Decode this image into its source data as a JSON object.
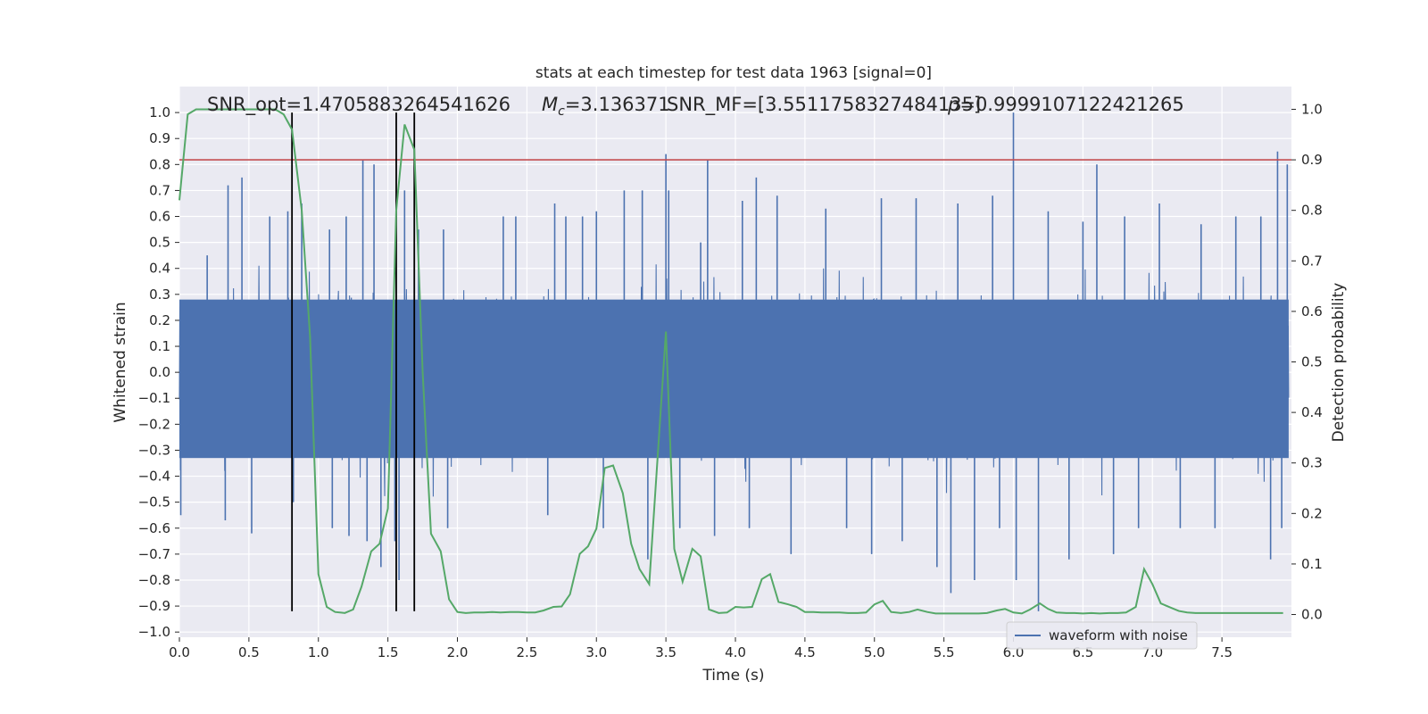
{
  "chart_data": {
    "type": "line",
    "title": "stats at each timestep for test data 1963 [signal=0]",
    "xlabel": "Time (s)",
    "ylabel_left": "Whitened strain",
    "ylabel_right": "Detection probability",
    "xlim": [
      0.0,
      8.0
    ],
    "ylim_left": [
      -1.02,
      1.1
    ],
    "ylim_right": [
      -0.045,
      1.045
    ],
    "x_ticks": [
      0.0,
      0.5,
      1.0,
      1.5,
      2.0,
      2.5,
      3.0,
      3.5,
      4.0,
      4.5,
      5.0,
      5.5,
      6.0,
      6.5,
      7.0,
      7.5
    ],
    "x_tick_labels": [
      "0.0",
      "0.5",
      "1.0",
      "1.5",
      "2.0",
      "2.5",
      "3.0",
      "3.5",
      "4.0",
      "4.5",
      "5.0",
      "5.5",
      "6.0",
      "6.5",
      "7.0",
      "7.5"
    ],
    "y_left_ticks": [
      -1.0,
      -0.9,
      -0.8,
      -0.7,
      -0.6,
      -0.5,
      -0.4,
      -0.3,
      -0.2,
      -0.1,
      0.0,
      0.1,
      0.2,
      0.3,
      0.4,
      0.5,
      0.6,
      0.7,
      0.8,
      0.9,
      1.0
    ],
    "y_left_tick_labels": [
      "−1.0",
      "−0.9",
      "−0.8",
      "−0.7",
      "−0.6",
      "−0.5",
      "−0.4",
      "−0.3",
      "−0.2",
      "−0.1",
      "0.0",
      "0.1",
      "0.2",
      "0.3",
      "0.4",
      "0.5",
      "0.6",
      "0.7",
      "0.8",
      "0.9",
      "1.0"
    ],
    "y_right_ticks": [
      0.0,
      0.1,
      0.2,
      0.3,
      0.4,
      0.5,
      0.6,
      0.7,
      0.8,
      0.9,
      1.0
    ],
    "y_right_tick_labels": [
      "0.0",
      "0.1",
      "0.2",
      "0.3",
      "0.4",
      "0.5",
      "0.6",
      "0.7",
      "0.8",
      "0.9",
      "1.0"
    ],
    "grid": true,
    "legend": {
      "placement": "lower-right",
      "entries": [
        "waveform with noise"
      ]
    },
    "annotations": [
      {
        "text": "SNR_opt=1.4705883264541626",
        "x": 0.2
      },
      {
        "text": "M",
        "sub": "c",
        "rest": "=3.136371",
        "x": 2.6
      },
      {
        "text": "SNR_MF=[3.5511758327484135]",
        "x": 3.52
      },
      {
        "text": "=0.9999107122421265",
        "prefix": "p",
        "x": 5.6
      }
    ],
    "threshold": {
      "axis": "right",
      "value": 0.9,
      "color": "#c44e52"
    },
    "vlines": [
      0.81,
      1.56,
      1.69
    ],
    "vline_range_left": [
      -0.92,
      1.0
    ],
    "waveform": {
      "name": "waveform with noise",
      "color": "#4c72b0",
      "axis": "left",
      "x_start": 0.0,
      "x_end": 7.98,
      "core_sigma": 0.14,
      "spikes": [
        [
          0.01,
          -0.55
        ],
        [
          0.2,
          0.45
        ],
        [
          0.33,
          -0.57
        ],
        [
          0.35,
          0.72
        ],
        [
          0.45,
          0.75
        ],
        [
          0.52,
          -0.62
        ],
        [
          0.65,
          0.6
        ],
        [
          0.78,
          0.62
        ],
        [
          0.82,
          -0.5
        ],
        [
          0.88,
          0.65
        ],
        [
          1.08,
          0.55
        ],
        [
          1.1,
          -0.6
        ],
        [
          1.2,
          0.6
        ],
        [
          1.22,
          -0.63
        ],
        [
          1.32,
          0.82
        ],
        [
          1.35,
          -0.65
        ],
        [
          1.4,
          0.8
        ],
        [
          1.45,
          -0.75
        ],
        [
          1.55,
          -0.65
        ],
        [
          1.58,
          -0.8
        ],
        [
          1.62,
          0.7
        ],
        [
          1.72,
          0.55
        ],
        [
          1.9,
          0.55
        ],
        [
          1.93,
          -0.6
        ],
        [
          2.33,
          0.6
        ],
        [
          2.42,
          0.6
        ],
        [
          2.65,
          -0.55
        ],
        [
          2.7,
          0.65
        ],
        [
          2.78,
          0.6
        ],
        [
          2.9,
          0.6
        ],
        [
          3.0,
          0.62
        ],
        [
          3.05,
          -0.6
        ],
        [
          3.2,
          0.7
        ],
        [
          3.33,
          0.7
        ],
        [
          3.37,
          -0.72
        ],
        [
          3.5,
          0.84
        ],
        [
          3.52,
          0.7
        ],
        [
          3.6,
          -0.6
        ],
        [
          3.75,
          0.5
        ],
        [
          3.8,
          0.82
        ],
        [
          3.85,
          -0.63
        ],
        [
          4.05,
          0.66
        ],
        [
          4.1,
          -0.6
        ],
        [
          4.15,
          0.75
        ],
        [
          4.3,
          0.68
        ],
        [
          4.4,
          -0.7
        ],
        [
          4.65,
          0.63
        ],
        [
          4.8,
          -0.6
        ],
        [
          4.98,
          -0.7
        ],
        [
          5.05,
          0.67
        ],
        [
          5.2,
          -0.65
        ],
        [
          5.3,
          0.67
        ],
        [
          5.45,
          -0.75
        ],
        [
          5.55,
          -0.85
        ],
        [
          5.6,
          0.65
        ],
        [
          5.72,
          -0.8
        ],
        [
          5.85,
          0.68
        ],
        [
          5.9,
          -0.6
        ],
        [
          6.0,
          1.0
        ],
        [
          6.02,
          -0.8
        ],
        [
          6.18,
          -0.92
        ],
        [
          6.25,
          0.62
        ],
        [
          6.4,
          -0.72
        ],
        [
          6.5,
          0.58
        ],
        [
          6.6,
          0.8
        ],
        [
          6.72,
          -0.7
        ],
        [
          6.8,
          0.6
        ],
        [
          6.9,
          -0.6
        ],
        [
          7.05,
          0.65
        ],
        [
          7.2,
          -0.6
        ],
        [
          7.35,
          0.57
        ],
        [
          7.45,
          -0.6
        ],
        [
          7.6,
          0.6
        ],
        [
          7.78,
          0.6
        ],
        [
          7.85,
          -0.72
        ],
        [
          7.9,
          0.85
        ],
        [
          7.93,
          -0.6
        ],
        [
          7.97,
          0.8
        ]
      ]
    },
    "probability": {
      "color": "#55a868",
      "axis": "right",
      "x": [
        0.0,
        0.06,
        0.12,
        0.19,
        0.25,
        0.31,
        0.38,
        0.44,
        0.5,
        0.56,
        0.62,
        0.69,
        0.75,
        0.81,
        0.88,
        0.94,
        1.0,
        1.06,
        1.12,
        1.19,
        1.25,
        1.31,
        1.38,
        1.44,
        1.5,
        1.56,
        1.62,
        1.69,
        1.75,
        1.81,
        1.88,
        1.94,
        2.0,
        2.06,
        2.12,
        2.19,
        2.25,
        2.31,
        2.38,
        2.44,
        2.5,
        2.56,
        2.62,
        2.69,
        2.75,
        2.81,
        2.88,
        2.94,
        3.0,
        3.06,
        3.12,
        3.19,
        3.25,
        3.31,
        3.38,
        3.44,
        3.5,
        3.56,
        3.62,
        3.69,
        3.75,
        3.81,
        3.88,
        3.94,
        4.0,
        4.06,
        4.12,
        4.19,
        4.25,
        4.31,
        4.38,
        4.44,
        4.5,
        4.56,
        4.62,
        4.69,
        4.75,
        4.81,
        4.88,
        4.94,
        5.0,
        5.06,
        5.12,
        5.19,
        5.25,
        5.31,
        5.38,
        5.44,
        5.5,
        5.56,
        5.62,
        5.69,
        5.75,
        5.81,
        5.88,
        5.94,
        6.0,
        6.06,
        6.12,
        6.19,
        6.25,
        6.31,
        6.38,
        6.44,
        6.5,
        6.56,
        6.62,
        6.69,
        6.75,
        6.81,
        6.88,
        6.94,
        7.0,
        7.06,
        7.12,
        7.19,
        7.25,
        7.31,
        7.38,
        7.44,
        7.5,
        7.56,
        7.62,
        7.69,
        7.75,
        7.81,
        7.88,
        7.94
      ],
      "y": [
        0.82,
        0.99,
        1.0,
        1.0,
        1.0,
        1.0,
        1.0,
        1.0,
        1.0,
        1.0,
        1.0,
        1.0,
        0.99,
        0.96,
        0.8,
        0.55,
        0.08,
        0.015,
        0.005,
        0.003,
        0.01,
        0.055,
        0.125,
        0.14,
        0.21,
        0.8,
        0.97,
        0.92,
        0.48,
        0.16,
        0.125,
        0.03,
        0.005,
        0.003,
        0.004,
        0.004,
        0.005,
        0.004,
        0.005,
        0.005,
        0.004,
        0.004,
        0.008,
        0.015,
        0.016,
        0.04,
        0.12,
        0.135,
        0.17,
        0.29,
        0.295,
        0.24,
        0.14,
        0.09,
        0.06,
        0.31,
        0.56,
        0.13,
        0.065,
        0.13,
        0.115,
        0.01,
        0.003,
        0.004,
        0.015,
        0.014,
        0.015,
        0.07,
        0.08,
        0.025,
        0.02,
        0.015,
        0.005,
        0.005,
        0.004,
        0.004,
        0.004,
        0.003,
        0.003,
        0.004,
        0.02,
        0.027,
        0.005,
        0.003,
        0.005,
        0.01,
        0.005,
        0.002,
        0.002,
        0.002,
        0.002,
        0.002,
        0.002,
        0.003,
        0.008,
        0.011,
        0.004,
        0.002,
        0.01,
        0.022,
        0.011,
        0.004,
        0.003,
        0.003,
        0.002,
        0.003,
        0.002,
        0.003,
        0.003,
        0.004,
        0.015,
        0.09,
        0.06,
        0.022,
        0.015,
        0.007,
        0.004,
        0.003,
        0.003,
        0.003,
        0.003,
        0.003,
        0.003,
        0.003,
        0.003,
        0.003,
        0.003,
        0.003
      ]
    }
  }
}
